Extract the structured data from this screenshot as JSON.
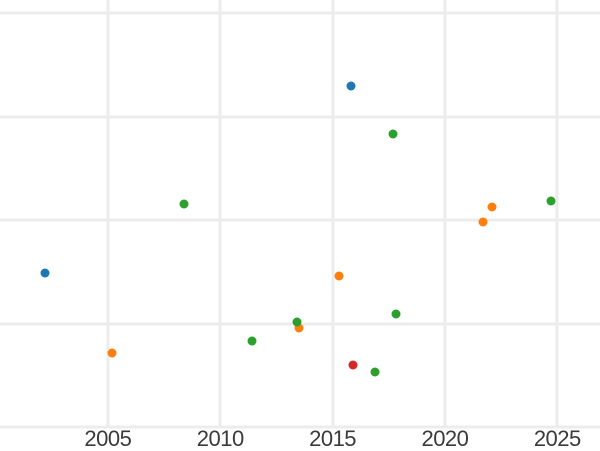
{
  "chart_data": {
    "type": "scatter",
    "title": "",
    "xlabel": "",
    "ylabel": "",
    "x_ticks": [
      2005,
      2010,
      2015,
      2020,
      2025
    ],
    "x_range": [
      2000.2,
      2026.9
    ],
    "y_range": [
      -0.22,
      4.13
    ],
    "y_gridlines": [
      0,
      1,
      2,
      3,
      4
    ],
    "y_tick_labels_visible": false,
    "grid_visible": true,
    "legend_visible": false,
    "series": [
      {
        "name": "blue",
        "color": "#1f77b4",
        "points": [
          {
            "x": 2002.2,
            "y": 1.49
          },
          {
            "x": 2015.8,
            "y": 3.3
          }
        ]
      },
      {
        "name": "orange",
        "color": "#ff7f0e",
        "points": [
          {
            "x": 2005.2,
            "y": 0.72
          },
          {
            "x": 2013.5,
            "y": 0.96
          },
          {
            "x": 2015.3,
            "y": 1.46
          },
          {
            "x": 2021.7,
            "y": 1.98
          },
          {
            "x": 2022.1,
            "y": 2.13
          }
        ]
      },
      {
        "name": "green",
        "color": "#2ca02c",
        "points": [
          {
            "x": 2008.4,
            "y": 2.16
          },
          {
            "x": 2011.4,
            "y": 0.83
          },
          {
            "x": 2013.4,
            "y": 1.02
          },
          {
            "x": 2016.9,
            "y": 0.53
          },
          {
            "x": 2017.7,
            "y": 2.83
          },
          {
            "x": 2017.8,
            "y": 1.09
          },
          {
            "x": 2024.7,
            "y": 2.19
          }
        ]
      },
      {
        "name": "red",
        "color": "#d62728",
        "points": [
          {
            "x": 2015.9,
            "y": 0.6
          }
        ]
      }
    ],
    "style": {
      "background_color": "#ffffff",
      "gridline_color": "#ececec",
      "tick_label_color": "#3b3b3b",
      "marker_diameter_px": 9
    }
  }
}
